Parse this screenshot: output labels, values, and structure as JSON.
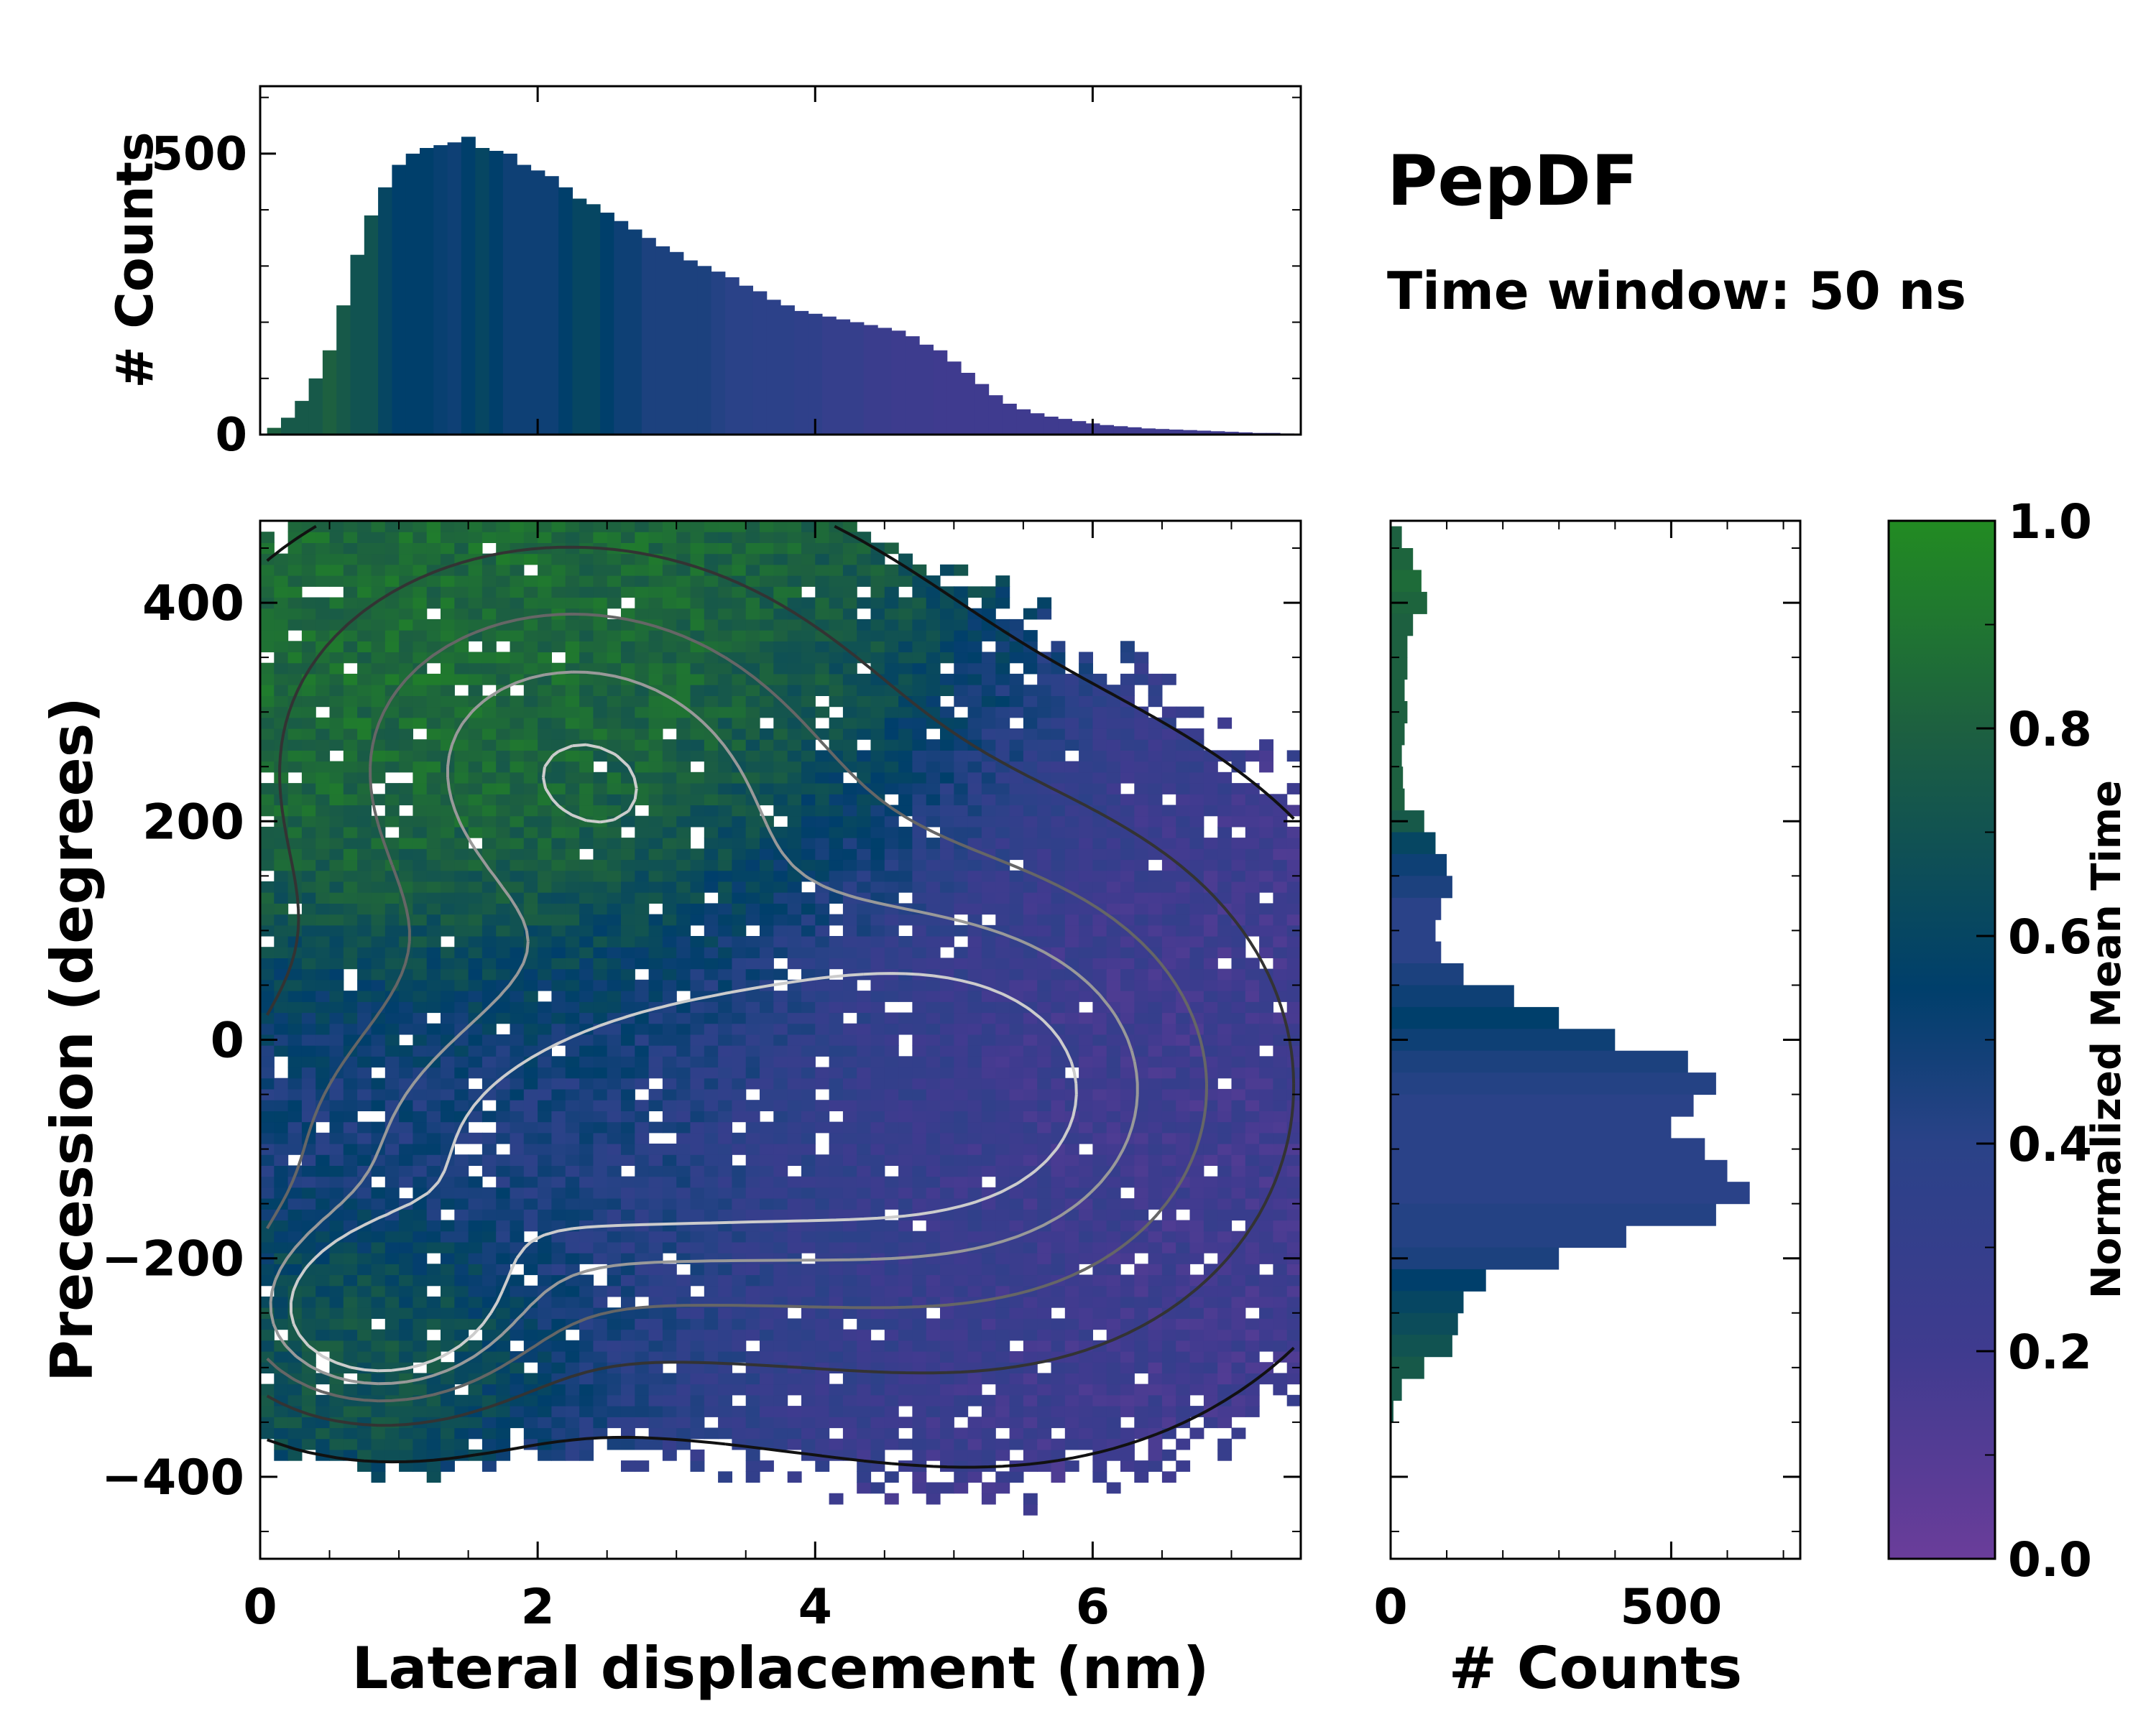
{
  "chart_data": [
    {
      "type": "bar",
      "panel": "top-histogram",
      "ylabel": "# Counts",
      "xlim": [
        0,
        7.5
      ],
      "ylim": [
        0,
        620
      ],
      "yticks": [
        0,
        500
      ],
      "ytick_labels": [
        "0",
        "500"
      ],
      "color_by": "Normalized Mean Time",
      "x": [
        0.1,
        0.2,
        0.3,
        0.4,
        0.5,
        0.6,
        0.7,
        0.8,
        0.9,
        1.0,
        1.1,
        1.2,
        1.3,
        1.4,
        1.5,
        1.6,
        1.7,
        1.8,
        1.9,
        2.0,
        2.1,
        2.2,
        2.3,
        2.4,
        2.5,
        2.6,
        2.7,
        2.8,
        2.9,
        3.0,
        3.1,
        3.2,
        3.3,
        3.4,
        3.5,
        3.6,
        3.7,
        3.8,
        3.9,
        4.0,
        4.1,
        4.2,
        4.3,
        4.4,
        4.5,
        4.6,
        4.7,
        4.8,
        4.9,
        5.0,
        5.1,
        5.2,
        5.3,
        5.4,
        5.5,
        5.6,
        5.7,
        5.8,
        5.9,
        6.0,
        6.1,
        6.2,
        6.3,
        6.4,
        6.5,
        6.6,
        6.7,
        6.8,
        6.9,
        7.0,
        7.1,
        7.2,
        7.3,
        7.4
      ],
      "values": [
        12,
        30,
        60,
        100,
        150,
        230,
        320,
        390,
        440,
        480,
        500,
        510,
        515,
        520,
        530,
        510,
        505,
        500,
        480,
        470,
        460,
        440,
        420,
        410,
        395,
        380,
        365,
        350,
        335,
        325,
        310,
        300,
        290,
        280,
        265,
        255,
        240,
        230,
        220,
        215,
        210,
        205,
        200,
        195,
        190,
        185,
        175,
        160,
        150,
        130,
        110,
        90,
        70,
        55,
        45,
        38,
        32,
        28,
        24,
        20,
        17,
        15,
        13,
        11,
        10,
        9,
        8,
        7,
        6,
        5,
        4,
        3,
        3,
        2
      ],
      "colors": [
        0.8,
        0.75,
        0.75,
        0.75,
        0.8,
        0.75,
        0.7,
        0.7,
        0.6,
        0.55,
        0.55,
        0.55,
        0.52,
        0.5,
        0.55,
        0.6,
        0.55,
        0.5,
        0.5,
        0.5,
        0.5,
        0.55,
        0.6,
        0.6,
        0.55,
        0.5,
        0.5,
        0.45,
        0.45,
        0.45,
        0.45,
        0.45,
        0.42,
        0.4,
        0.4,
        0.38,
        0.38,
        0.38,
        0.35,
        0.35,
        0.3,
        0.3,
        0.3,
        0.25,
        0.25,
        0.22,
        0.22,
        0.22,
        0.2,
        0.2,
        0.2,
        0.2,
        0.2,
        0.2,
        0.2,
        0.2,
        0.2,
        0.2,
        0.2,
        0.2,
        0.2,
        0.2,
        0.2,
        0.2,
        0.2,
        0.2,
        0.2,
        0.2,
        0.2,
        0.2,
        0.2,
        0.2,
        0.2,
        0.2
      ]
    },
    {
      "type": "heatmap",
      "panel": "main-2d-histogram",
      "xlabel": "Lateral displacement (nm)",
      "ylabel": "Precession (degrees)",
      "xlim": [
        0,
        7.5
      ],
      "ylim": [
        -475,
        475
      ],
      "xticks": [
        0,
        2,
        4,
        6
      ],
      "xtick_labels": [
        "0",
        "2",
        "4",
        "6"
      ],
      "yticks": [
        -400,
        -200,
        0,
        200,
        400
      ],
      "ytick_labels": [
        "−400",
        "−200",
        "0",
        "200",
        "400"
      ],
      "color_by": "Normalized Mean Time",
      "contours": "density contours, dark (low) to light (high)",
      "regions": [
        {
          "name": "upper green region",
          "color": 0.85,
          "cx": 2.2,
          "cy": 260,
          "sx": 1.6,
          "sy": 150
        },
        {
          "name": "central blue region",
          "color": 0.45,
          "cx": 2.0,
          "cy": -110,
          "sx": 1.8,
          "sy": 130
        },
        {
          "name": "right purple region",
          "color": 0.2,
          "cx": 5.4,
          "cy": -40,
          "sx": 1.6,
          "sy": 190
        },
        {
          "name": "lower-left green region",
          "color": 0.8,
          "cx": 0.8,
          "cy": -260,
          "sx": 0.7,
          "sy": 60
        }
      ]
    },
    {
      "type": "bar",
      "orientation": "horizontal",
      "panel": "right-histogram",
      "xlabel": "# Counts",
      "xlim": [
        0,
        730
      ],
      "xticks": [
        0,
        500
      ],
      "xtick_labels": [
        "0",
        "500"
      ],
      "color_by": "Normalized Mean Time",
      "y": [
        460,
        440,
        420,
        400,
        380,
        360,
        340,
        320,
        300,
        280,
        260,
        240,
        220,
        200,
        180,
        160,
        140,
        120,
        100,
        80,
        60,
        40,
        20,
        0,
        -20,
        -40,
        -60,
        -80,
        -100,
        -120,
        -140,
        -160,
        -180,
        -200,
        -220,
        -240,
        -260,
        -280,
        -300,
        -320,
        -340
      ],
      "values": [
        20,
        40,
        55,
        65,
        40,
        30,
        30,
        25,
        30,
        25,
        20,
        22,
        25,
        60,
        80,
        100,
        110,
        90,
        80,
        90,
        130,
        220,
        300,
        400,
        530,
        580,
        540,
        500,
        560,
        600,
        640,
        580,
        420,
        300,
        170,
        130,
        120,
        110,
        60,
        20,
        5
      ],
      "colors": [
        0.8,
        0.82,
        0.85,
        0.82,
        0.8,
        0.8,
        0.8,
        0.8,
        0.8,
        0.8,
        0.8,
        0.8,
        0.8,
        0.75,
        0.6,
        0.5,
        0.45,
        0.4,
        0.4,
        0.4,
        0.45,
        0.5,
        0.55,
        0.5,
        0.45,
        0.42,
        0.4,
        0.4,
        0.4,
        0.4,
        0.4,
        0.42,
        0.42,
        0.45,
        0.55,
        0.6,
        0.65,
        0.7,
        0.75,
        0.75,
        0.75
      ]
    },
    {
      "type": "colorbar",
      "label": "Normalized Mean Time",
      "range": [
        0,
        1
      ],
      "ticks": [
        0.0,
        0.2,
        0.4,
        0.6,
        0.8,
        1.0
      ],
      "tick_labels": [
        "0.0",
        "0.2",
        "0.4",
        "0.6",
        "0.8",
        "1.0"
      ],
      "colormap_stops": [
        "#6a3d9a",
        "#3f3b8f",
        "#2a4288",
        "#003f6b",
        "#1d6040",
        "#228b22"
      ]
    }
  ],
  "annotations": {
    "title": "PepDF",
    "subtitle": "Time window: 50 ns"
  }
}
